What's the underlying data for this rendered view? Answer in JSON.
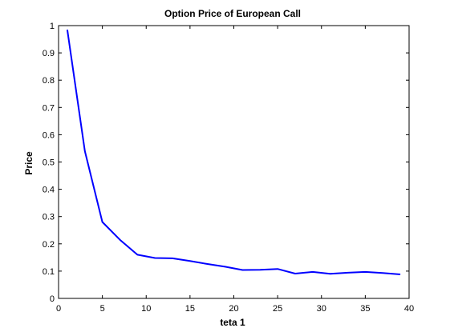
{
  "chart_data": {
    "type": "line",
    "title": "Option Price of European Call",
    "xlabel": "teta 1",
    "ylabel": "Price",
    "xlim": [
      0,
      40
    ],
    "ylim": [
      0,
      1
    ],
    "xticks": [
      0,
      5,
      10,
      15,
      20,
      25,
      30,
      35,
      40
    ],
    "xtick_labels": [
      "0",
      "5",
      "10",
      "15",
      "20",
      "25",
      "30",
      "35",
      "40"
    ],
    "yticks": [
      0,
      0.1,
      0.2,
      0.3,
      0.4,
      0.5,
      0.6,
      0.7,
      0.8,
      0.9,
      1
    ],
    "ytick_labels": [
      "0",
      "0.1",
      "0.2",
      "0.3",
      "0.4",
      "0.5",
      "0.6",
      "0.7",
      "0.8",
      "0.9",
      "1"
    ],
    "grid": false,
    "legend": "none",
    "series": [
      {
        "color": "#0000ff",
        "x": [
          1,
          3,
          5,
          7,
          9,
          11,
          13,
          15,
          17,
          19,
          21,
          23,
          25,
          27,
          29,
          31,
          33,
          35,
          37,
          39
        ],
        "y": [
          0.985,
          0.54,
          0.28,
          0.215,
          0.16,
          0.148,
          0.147,
          0.137,
          0.126,
          0.116,
          0.104,
          0.105,
          0.108,
          0.091,
          0.097,
          0.09,
          0.094,
          0.097,
          0.093,
          0.088
        ]
      }
    ]
  }
}
